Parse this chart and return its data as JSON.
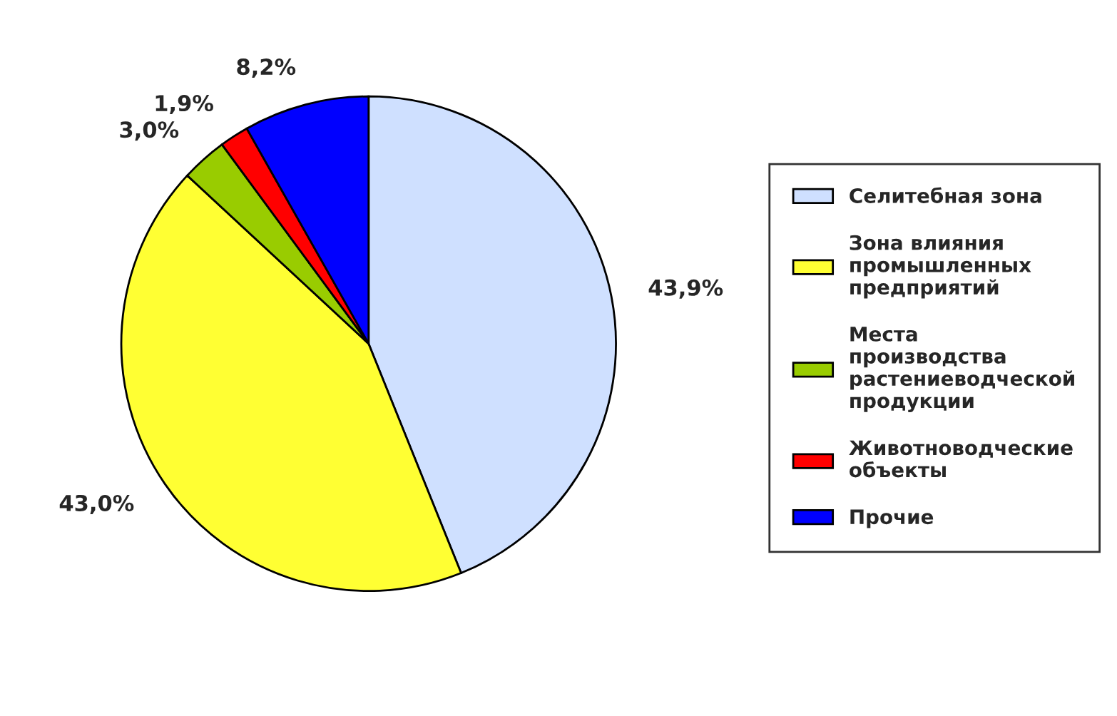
{
  "chart_data": {
    "type": "pie",
    "categories": [
      "Селитебная зона",
      "Зона влияния промышленных предприятий",
      "Места производства растениеводческой продукции",
      "Животноводческие объекты",
      "Прочие"
    ],
    "values": [
      43.9,
      43.0,
      3.0,
      1.9,
      8.2
    ],
    "value_labels": [
      "43,9%",
      "43,0%",
      "3,0%",
      "1,9%",
      "8,2%"
    ],
    "colors": [
      "#cfe0ff",
      "#ffff33",
      "#99cc00",
      "#ff0000",
      "#0000ff"
    ],
    "legend": "right"
  }
}
